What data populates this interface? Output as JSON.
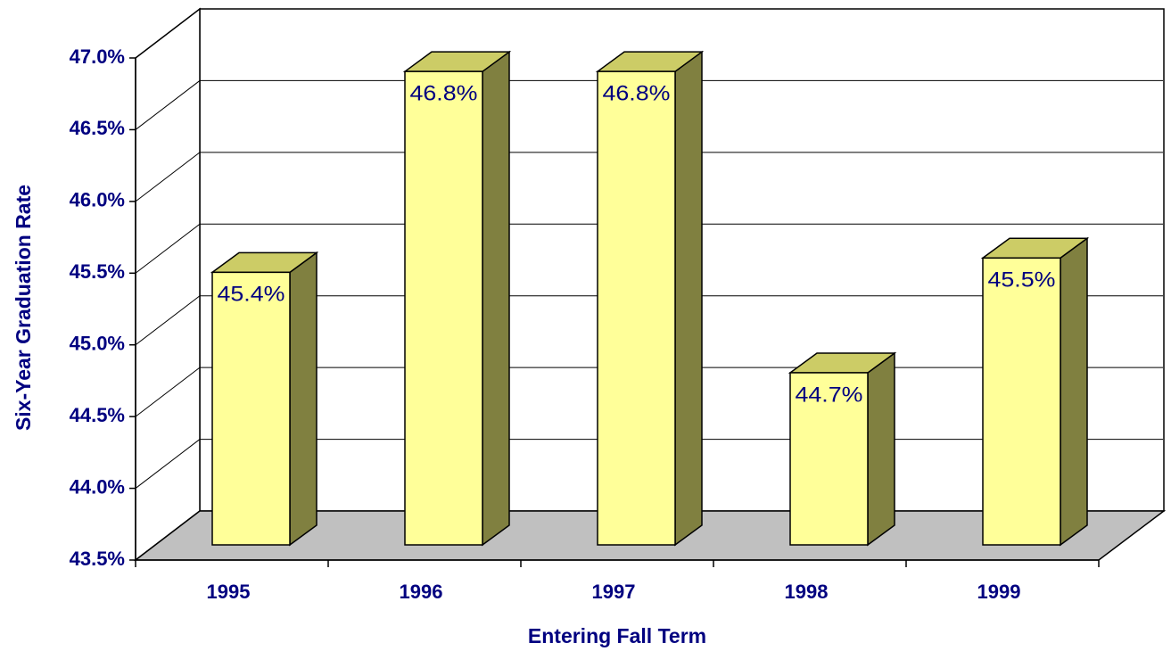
{
  "chart_data": {
    "type": "bar3d",
    "categories": [
      "1995",
      "1996",
      "1997",
      "1998",
      "1999"
    ],
    "values": [
      45.4,
      46.8,
      46.8,
      44.7,
      45.5
    ],
    "value_labels": [
      "45.4%",
      "46.8%",
      "46.8%",
      "44.7%",
      "45.5%"
    ],
    "color": "#ffff99",
    "ylim": [
      43.5,
      47.0
    ],
    "yticks": [
      {
        "value": 43.5,
        "label": "43.5%"
      },
      {
        "value": 44.0,
        "label": "44.0%"
      },
      {
        "value": 44.5,
        "label": "44.5%"
      },
      {
        "value": 45.0,
        "label": "45.0%"
      },
      {
        "value": 45.5,
        "label": "45.5%"
      },
      {
        "value": 46.0,
        "label": "46.0%"
      },
      {
        "value": 46.5,
        "label": "46.5%"
      },
      {
        "value": 47.0,
        "label": "47.0%"
      }
    ],
    "y_label": "Six-Year Graduation Rate",
    "x_label": "Entering Fall Term",
    "grid": true
  }
}
